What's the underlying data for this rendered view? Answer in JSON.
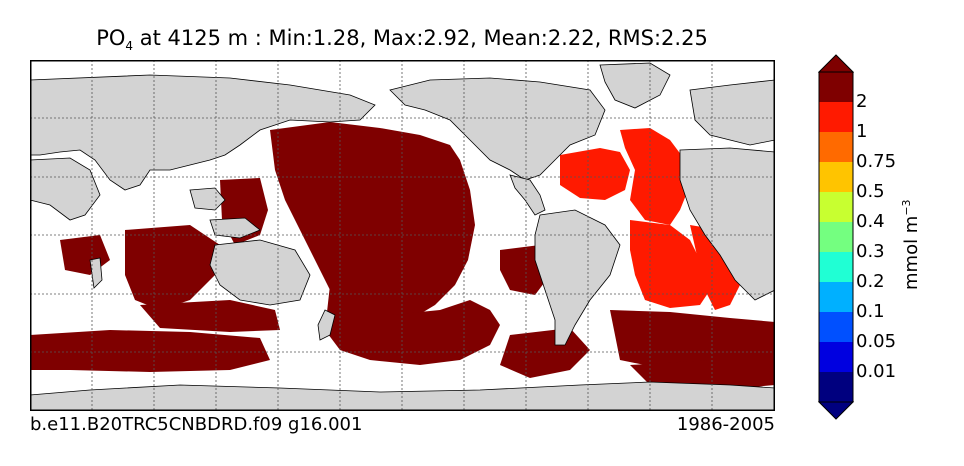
{
  "title": {
    "variable": "PO",
    "subscript": "4",
    "rest": " at 4125 m : Min:1.28, Max:2.92, Mean:2.22, RMS:2.25"
  },
  "footer": {
    "case": "b.e11.B20TRC5CNBDRD.f09 g16.001",
    "period": "1986-2005"
  },
  "colorbar": {
    "unit_base": "mmol m",
    "unit_exp": "−3",
    "labels": [
      "2",
      "1",
      "0.75",
      "0.5",
      "0.4",
      "0.3",
      "0.2",
      "0.1",
      "0.05",
      "0.01"
    ],
    "colors": [
      "#7f0000",
      "#ff1a00",
      "#ff6a00",
      "#ffc400",
      "#c8ff30",
      "#74ff80",
      "#20ffd4",
      "#00b0ff",
      "#0050ff",
      "#0000e0",
      "#00007f"
    ],
    "extend_top": "#7f0000",
    "extend_bottom": "#00007f"
  },
  "map_colors": {
    "land": "#d3d3d3",
    "ocean_missing": "#ffffff",
    "high": "#7f0000",
    "mid": "#ff1a00"
  }
}
